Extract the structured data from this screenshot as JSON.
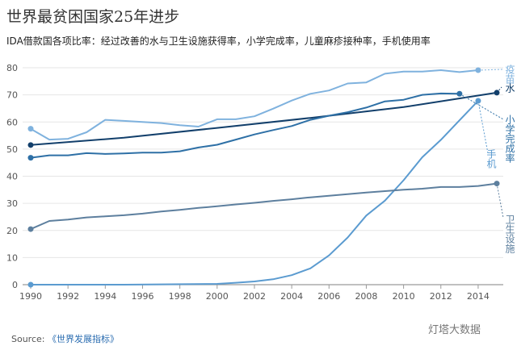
{
  "header": {
    "title": "世界最贫困国家25年进步",
    "subtitle": "IDA借款国各项比率：经过改善的水与卫生设施获得率，小学完成率，儿童麻疹接种率，手机使用率"
  },
  "footer": {
    "source_label": "Source:",
    "source_link": "《世界发展指标》",
    "watermark": "灯塔大数据"
  },
  "chart_data": {
    "type": "line",
    "title": "世界最贫困国家25年进步",
    "xlabel": "",
    "ylabel": "",
    "xlim": [
      1990,
      2015
    ],
    "ylim": [
      0,
      80
    ],
    "xticks": [
      1990,
      1992,
      1994,
      1996,
      1998,
      2000,
      2002,
      2004,
      2006,
      2008,
      2010,
      2012,
      2014
    ],
    "yticks": [
      0,
      10,
      20,
      30,
      40,
      50,
      60,
      70,
      80
    ],
    "grid": true,
    "series": [
      {
        "name": "疫苗",
        "color": "#7fb2de",
        "x": [
          1990,
          1991,
          1992,
          1993,
          1994,
          1995,
          1996,
          1997,
          1998,
          1999,
          2000,
          2001,
          2002,
          2003,
          2004,
          2005,
          2006,
          2007,
          2008,
          2009,
          2010,
          2011,
          2012,
          2013,
          2014
        ],
        "y": [
          57.5,
          53.5,
          53.8,
          56.2,
          60.8,
          60.4,
          60.0,
          59.6,
          58.8,
          58.3,
          61.0,
          61.0,
          62.1,
          64.9,
          67.9,
          70.4,
          71.6,
          74.2,
          74.6,
          77.8,
          78.6,
          78.6,
          79.1,
          78.4,
          79.1
        ]
      },
      {
        "name": "水",
        "color": "#123f6b",
        "x": [
          1990,
          1995,
          2000,
          2005,
          2010,
          2015
        ],
        "y": [
          51.5,
          54.2,
          57.8,
          61.5,
          65.5,
          70.8
        ]
      },
      {
        "name": "小学完成率",
        "color": "#2e70a6",
        "x": [
          1990,
          1991,
          1992,
          1993,
          1994,
          1995,
          1996,
          1997,
          1998,
          1999,
          2000,
          2001,
          2002,
          2003,
          2004,
          2005,
          2006,
          2007,
          2008,
          2009,
          2010,
          2011,
          2012,
          2013
        ],
        "y": [
          46.8,
          47.7,
          47.7,
          48.5,
          48.2,
          48.4,
          48.7,
          48.7,
          49.2,
          50.6,
          51.6,
          53.5,
          55.4,
          57.0,
          58.5,
          60.8,
          62.3,
          63.6,
          65.3,
          67.6,
          68.2,
          70.0,
          70.5,
          70.4
        ]
      },
      {
        "name": "手机",
        "color": "#5b9bd0",
        "x": [
          1990,
          1995,
          2000,
          2001,
          2002,
          2003,
          2004,
          2005,
          2006,
          2007,
          2008,
          2009,
          2010,
          2011,
          2012,
          2013,
          2014
        ],
        "y": [
          0,
          0,
          0.3,
          0.7,
          1.2,
          2.0,
          3.5,
          6.0,
          10.8,
          17.4,
          25.5,
          31.0,
          38.5,
          47.0,
          53.4,
          60.6,
          67.8
        ]
      },
      {
        "name": "卫生设施",
        "color": "#5d7f9e",
        "x": [
          1990,
          1991,
          1992,
          1993,
          1994,
          1995,
          1996,
          1997,
          1998,
          1999,
          2000,
          2001,
          2002,
          2003,
          2004,
          2005,
          2006,
          2007,
          2008,
          2009,
          2010,
          2011,
          2012,
          2013,
          2014,
          2015
        ],
        "y": [
          20.5,
          23.5,
          24.0,
          24.8,
          25.2,
          25.6,
          26.2,
          27.0,
          27.6,
          28.3,
          28.9,
          29.6,
          30.2,
          30.9,
          31.5,
          32.2,
          32.8,
          33.4,
          34.0,
          34.5,
          35.0,
          35.4,
          36.0,
          36.0,
          36.4,
          37.3
        ]
      }
    ],
    "labels": [
      {
        "text": "疫苗",
        "series": "疫苗"
      },
      {
        "text": "水",
        "series": "水"
      },
      {
        "text": "小学完成率",
        "series": "小学完成率"
      },
      {
        "text": "手机",
        "series": "手机"
      },
      {
        "text": "卫生设施",
        "series": "卫生设施"
      }
    ]
  }
}
